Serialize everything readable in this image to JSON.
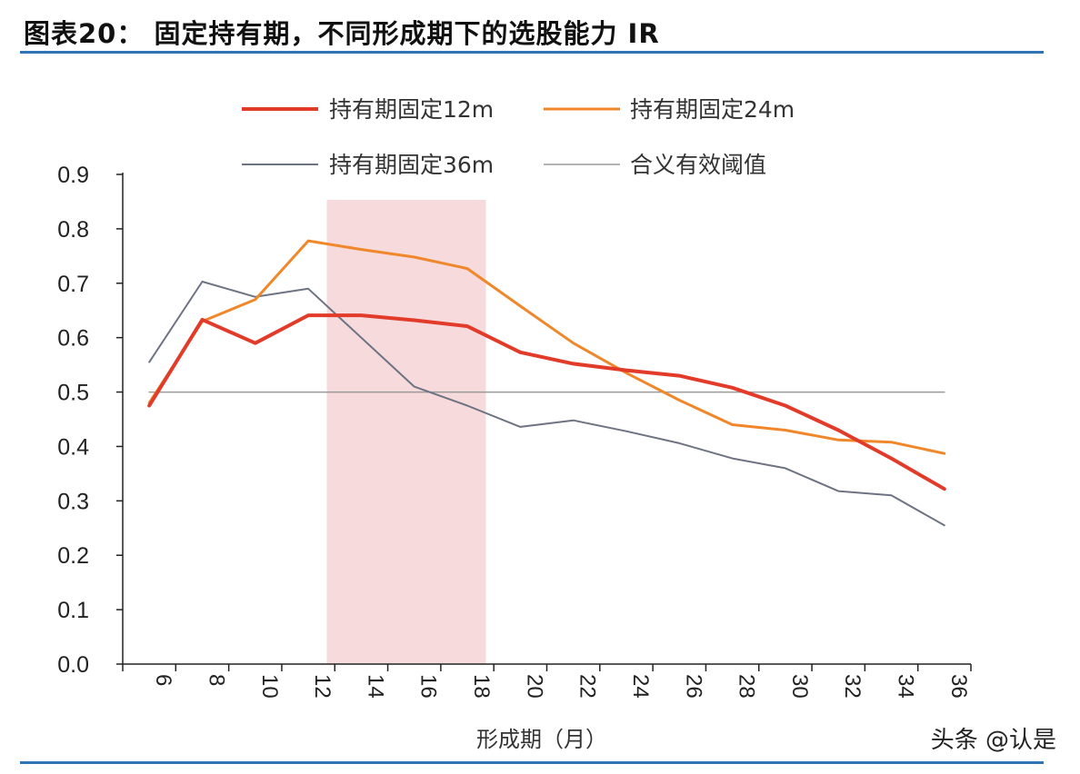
{
  "header": {
    "title": "图表20：  固定持有期，不同形成期下的选股能力 IR"
  },
  "watermark": "头条 @认是",
  "colors": {
    "rule": "#2f74b5",
    "highlight": "#f5d3d6",
    "series_12m": "#e23b2a",
    "series_24m": "#f0872a",
    "series_36m": "#6d7382",
    "reference": "#9a9a9a"
  },
  "chart_data": {
    "type": "line",
    "title": "",
    "xlabel": "形成期（月）",
    "ylabel": "",
    "x": [
      6,
      8,
      10,
      12,
      14,
      16,
      18,
      20,
      22,
      24,
      26,
      28,
      30,
      32,
      34,
      36
    ],
    "x_tick_labels": [
      "6",
      "8",
      "10",
      "12",
      "14",
      "16",
      "18",
      "20",
      "22",
      "24",
      "26",
      "28",
      "30",
      "32",
      "34",
      "36"
    ],
    "y_ticks": [
      "0.0",
      "0.1",
      "0.2",
      "0.3",
      "0.4",
      "0.5",
      "0.6",
      "0.7",
      "0.8",
      "0.9"
    ],
    "ylim": [
      0,
      0.9
    ],
    "grid": false,
    "legend_position": "top",
    "highlight_range": [
      12.7,
      18.7
    ],
    "series": [
      {
        "name": "持有期固定12m",
        "color_key": "series_12m",
        "width": 4,
        "values": [
          0.475,
          0.633,
          0.59,
          0.641,
          0.641,
          0.632,
          0.621,
          0.573,
          0.552,
          0.54,
          0.53,
          0.508,
          0.475,
          0.43,
          0.378,
          0.322
        ]
      },
      {
        "name": "持有期固定24m",
        "color_key": "series_24m",
        "width": 3,
        "values": [
          0.48,
          0.63,
          0.67,
          0.778,
          0.762,
          0.748,
          0.727,
          0.658,
          0.59,
          0.535,
          0.485,
          0.44,
          0.43,
          0.412,
          0.408,
          0.387
        ]
      },
      {
        "name": "持有期固定36m",
        "color_key": "series_36m",
        "width": 2,
        "values": [
          0.555,
          0.703,
          0.675,
          0.69,
          0.6,
          0.51,
          0.475,
          0.436,
          0.448,
          0.428,
          0.406,
          0.378,
          0.36,
          0.318,
          0.31,
          0.255
        ]
      },
      {
        "name": "合义有效阈值",
        "color_key": "reference",
        "width": 1.5,
        "values": [
          0.5,
          0.5,
          0.5,
          0.5,
          0.5,
          0.5,
          0.5,
          0.5,
          0.5,
          0.5,
          0.5,
          0.5,
          0.5,
          0.5,
          0.5,
          0.5
        ]
      }
    ]
  }
}
